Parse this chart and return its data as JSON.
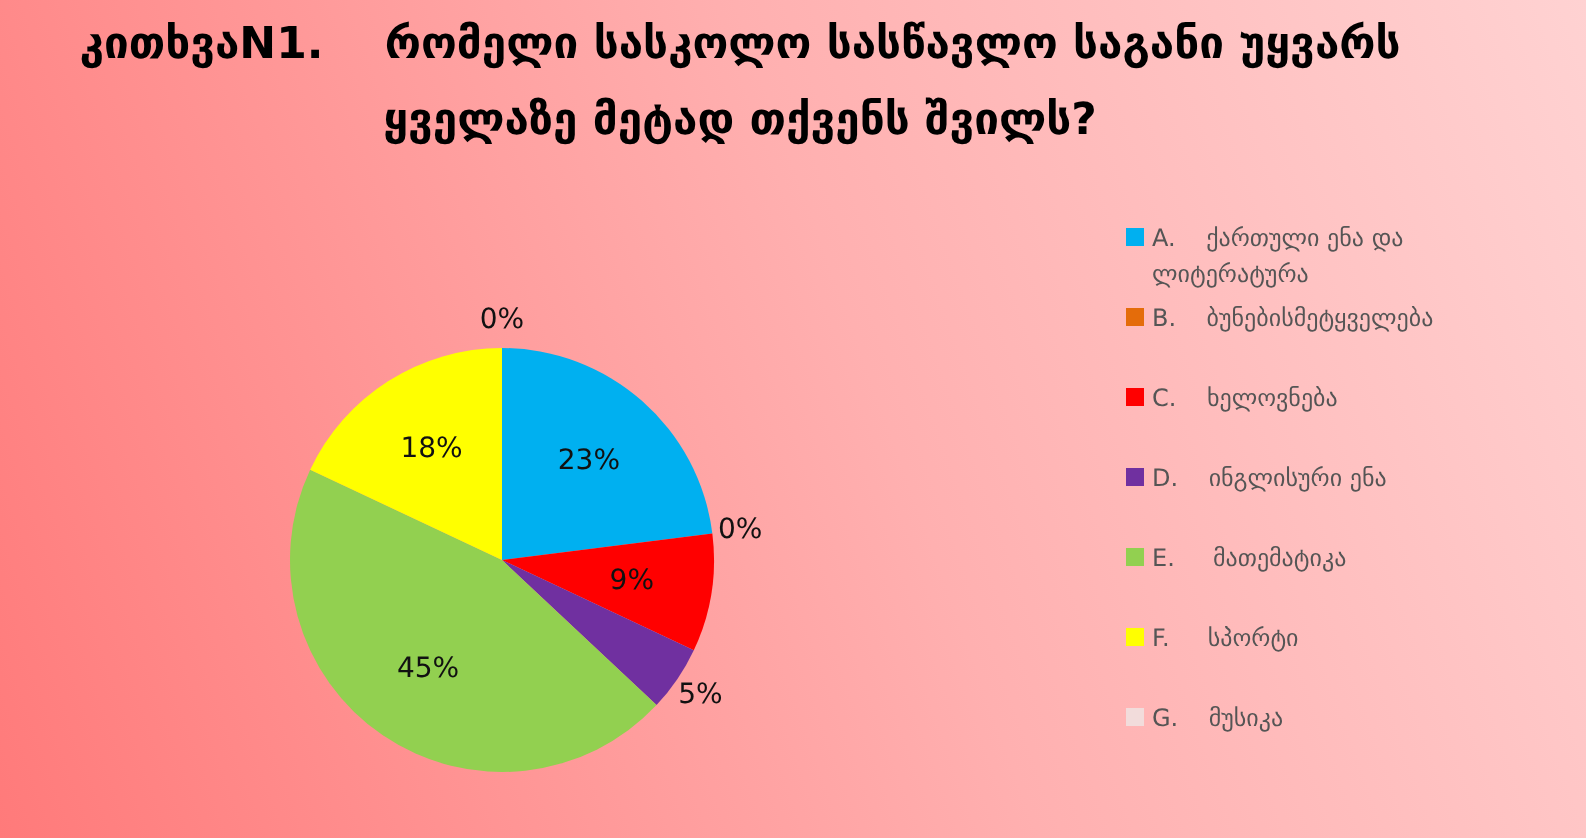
{
  "chart_data": {
    "type": "pie",
    "title": "კითხვაN1.    რომელი სასკოლო სასწავლო საგანი უყვარს ყველაზე მეტად თქვენს შვილს?",
    "categories": [
      "A.    ქართული ენა და ლიტერატურა",
      "B.    ბუნებისმეტყველება",
      "C.    ხელოვნება",
      "D.    ინგლისური ენა",
      "E.     მათემატიკა",
      "F.     სპორტი",
      "G.    მუსიკა"
    ],
    "values": [
      23,
      0,
      9,
      5,
      45,
      18,
      0
    ],
    "value_labels": [
      "23%",
      "0%",
      "9%",
      "5%",
      "45%",
      "18%",
      "0%"
    ],
    "colors": [
      "#00b0f0",
      "#e46c0a",
      "#ff0000",
      "#7030a0",
      "#92d050",
      "#ffff00",
      "#f2dcdb"
    ],
    "legend": "right"
  }
}
